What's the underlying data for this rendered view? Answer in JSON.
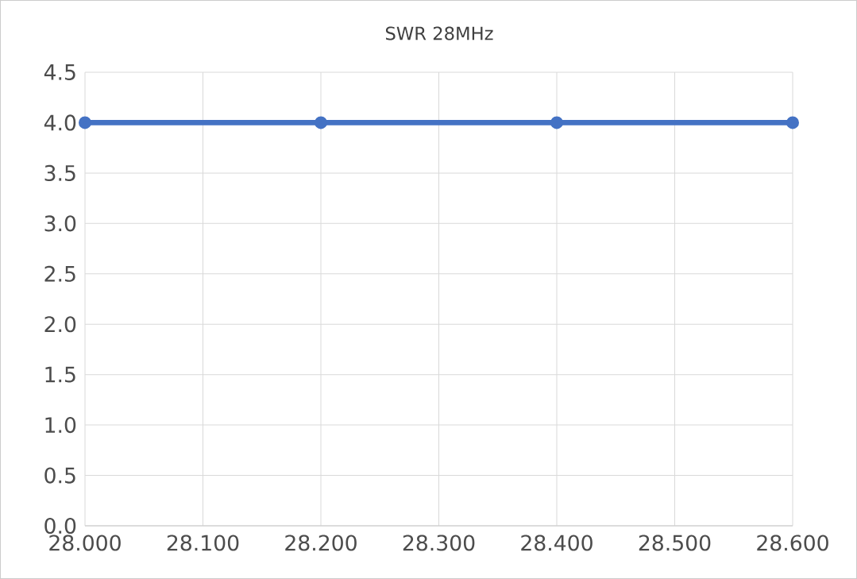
{
  "chart_data": {
    "type": "line",
    "title": "SWR 28MHz",
    "x": [
      28.0,
      28.2,
      28.4,
      28.6
    ],
    "series": [
      {
        "color": "#4472c4",
        "values": [
          4.0,
          4.0,
          4.0,
          4.0
        ]
      }
    ],
    "xlim": [
      28.0,
      28.6
    ],
    "xticks": [
      {
        "value": 28.0,
        "label": "28.000"
      },
      {
        "value": 28.1,
        "label": "28.100"
      },
      {
        "value": 28.2,
        "label": "28.200"
      },
      {
        "value": 28.3,
        "label": "28.300"
      },
      {
        "value": 28.4,
        "label": "28.400"
      },
      {
        "value": 28.5,
        "label": "28.500"
      },
      {
        "value": 28.6,
        "label": "28.600"
      }
    ],
    "ylim": [
      0,
      4.5
    ],
    "yticks": [
      {
        "value": 0,
        "label": "0.0"
      },
      {
        "value": 0.5,
        "label": "0.5"
      },
      {
        "value": 1,
        "label": "1.0"
      },
      {
        "value": 1.5,
        "label": "1.5"
      },
      {
        "value": 2,
        "label": "2.0"
      },
      {
        "value": 2.5,
        "label": "2.5"
      },
      {
        "value": 3,
        "label": "3.0"
      },
      {
        "value": 3.5,
        "label": "3.5"
      },
      {
        "value": 4,
        "label": "4.0"
      },
      {
        "value": 4.5,
        "label": "4.5"
      }
    ],
    "grid": true,
    "marker": "circle",
    "line_style": "solid"
  }
}
